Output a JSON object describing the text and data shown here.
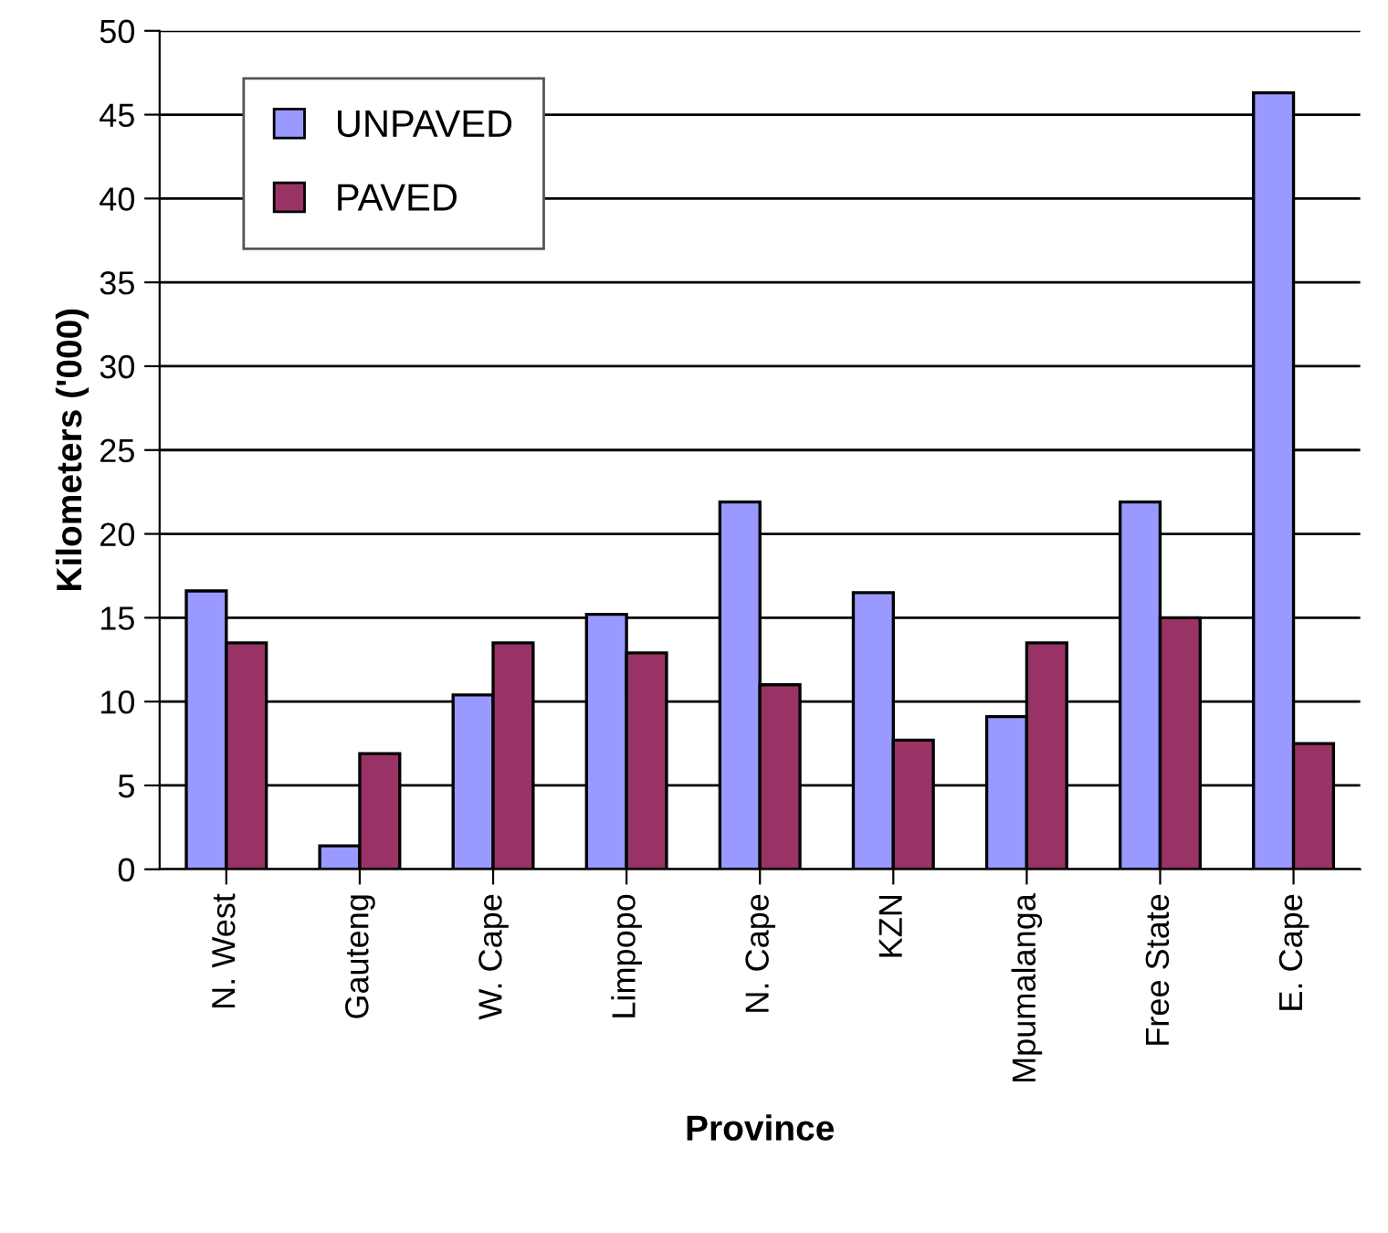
{
  "chart_data": {
    "type": "bar",
    "xlabel": "Province",
    "ylabel": "Kilometers ('000)",
    "categories": [
      "N. West",
      "Gauteng",
      "W. Cape",
      "Limpopo",
      "N. Cape",
      "KZN",
      "Mpumalanga",
      "Free State",
      "E. Cape"
    ],
    "series": [
      {
        "name": "UNPAVED",
        "color": "#9999ff",
        "values": [
          16.6,
          1.4,
          10.4,
          15.2,
          21.9,
          16.5,
          9.1,
          21.9,
          46.3
        ]
      },
      {
        "name": "PAVED",
        "color": "#993366",
        "values": [
          13.5,
          6.9,
          13.5,
          12.9,
          11.0,
          7.7,
          13.5,
          15.0,
          7.5
        ]
      }
    ],
    "ylim": [
      0,
      50
    ],
    "yticks": [
      0,
      5,
      10,
      15,
      20,
      25,
      30,
      35,
      40,
      45,
      50
    ],
    "grid": "y",
    "legend": "top left"
  }
}
